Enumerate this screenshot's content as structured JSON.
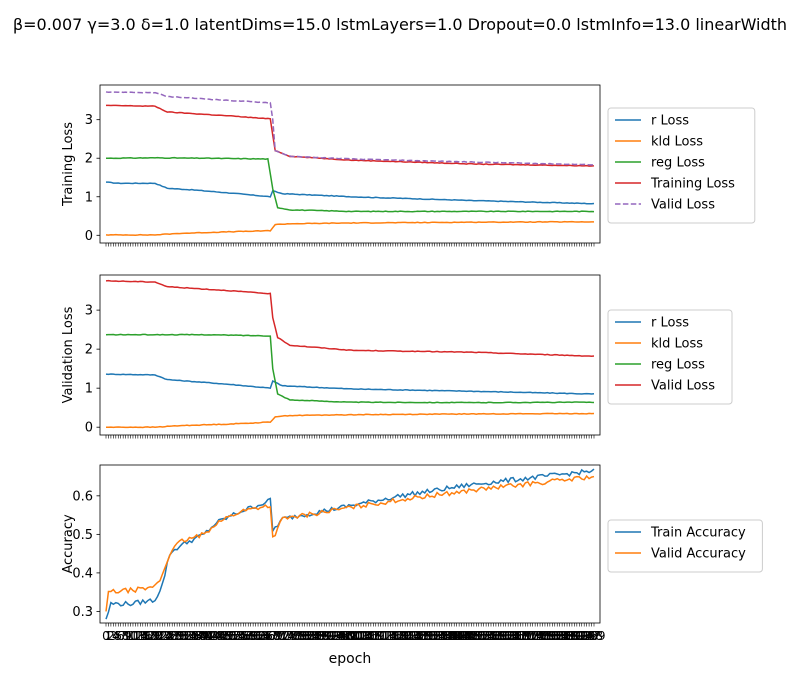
{
  "figure": {
    "suptitle": "β=0.007 γ=3.0 δ=1.0 latentDims=15.0 lstmLayers=1.0 Dropout=0.0 lstmInfo=13.0 linearWidth",
    "xlabel": "epoch"
  },
  "chart_data": [
    {
      "type": "line",
      "ylabel": "Training Loss",
      "ylim": [
        -0.2,
        3.9
      ],
      "yticks": [
        0,
        1,
        2,
        3
      ],
      "x_range": [
        0,
        199
      ],
      "legend": "right",
      "series": [
        {
          "name": "r Loss",
          "color": "#1f77b4",
          "dash": false,
          "points": [
            [
              0,
              1.38
            ],
            [
              5,
              1.35
            ],
            [
              20,
              1.35
            ],
            [
              25,
              1.22
            ],
            [
              35,
              1.18
            ],
            [
              50,
              1.1
            ],
            [
              67,
              1.0
            ],
            [
              68,
              1.15
            ],
            [
              72,
              1.08
            ],
            [
              100,
              1.0
            ],
            [
              150,
              0.9
            ],
            [
              199,
              0.82
            ]
          ]
        },
        {
          "name": "kld Loss",
          "color": "#ff7f0e",
          "dash": false,
          "points": [
            [
              0,
              0.01
            ],
            [
              20,
              0.01
            ],
            [
              30,
              0.05
            ],
            [
              50,
              0.09
            ],
            [
              67,
              0.12
            ],
            [
              69,
              0.28
            ],
            [
              75,
              0.3
            ],
            [
              100,
              0.32
            ],
            [
              150,
              0.34
            ],
            [
              199,
              0.35
            ]
          ]
        },
        {
          "name": "reg Loss",
          "color": "#2ca02c",
          "dash": false,
          "points": [
            [
              0,
              2.0
            ],
            [
              20,
              2.01
            ],
            [
              40,
              2.0
            ],
            [
              66,
              1.98
            ],
            [
              68,
              1.2
            ],
            [
              70,
              0.72
            ],
            [
              75,
              0.66
            ],
            [
              100,
              0.62
            ],
            [
              150,
              0.62
            ],
            [
              199,
              0.62
            ]
          ]
        },
        {
          "name": "Training Loss",
          "color": "#d62728",
          "dash": false,
          "points": [
            [
              0,
              3.37
            ],
            [
              20,
              3.35
            ],
            [
              25,
              3.2
            ],
            [
              50,
              3.1
            ],
            [
              67,
              3.02
            ],
            [
              68,
              2.6
            ],
            [
              69,
              2.2
            ],
            [
              75,
              2.05
            ],
            [
              100,
              1.95
            ],
            [
              150,
              1.85
            ],
            [
              199,
              1.8
            ]
          ]
        },
        {
          "name": "Valid Loss",
          "color": "#9467bd",
          "dash": true,
          "points": [
            [
              0,
              3.72
            ],
            [
              20,
              3.7
            ],
            [
              25,
              3.6
            ],
            [
              50,
              3.5
            ],
            [
              67,
              3.44
            ],
            [
              68,
              3.0
            ],
            [
              69,
              2.2
            ],
            [
              75,
              2.05
            ],
            [
              100,
              1.98
            ],
            [
              150,
              1.9
            ],
            [
              199,
              1.83
            ]
          ]
        }
      ]
    },
    {
      "type": "line",
      "ylabel": "Validation Loss",
      "ylim": [
        -0.2,
        3.9
      ],
      "yticks": [
        0,
        1,
        2,
        3
      ],
      "x_range": [
        0,
        199
      ],
      "legend": "right",
      "series": [
        {
          "name": "r Loss",
          "color": "#1f77b4",
          "dash": false,
          "points": [
            [
              0,
              1.36
            ],
            [
              20,
              1.34
            ],
            [
              25,
              1.22
            ],
            [
              50,
              1.1
            ],
            [
              67,
              1.0
            ],
            [
              68,
              1.18
            ],
            [
              72,
              1.06
            ],
            [
              100,
              0.98
            ],
            [
              150,
              0.92
            ],
            [
              199,
              0.85
            ]
          ]
        },
        {
          "name": "kld Loss",
          "color": "#ff7f0e",
          "dash": false,
          "points": [
            [
              0,
              0.0
            ],
            [
              20,
              0.0
            ],
            [
              30,
              0.04
            ],
            [
              50,
              0.08
            ],
            [
              67,
              0.13
            ],
            [
              69,
              0.27
            ],
            [
              75,
              0.3
            ],
            [
              100,
              0.32
            ],
            [
              150,
              0.34
            ],
            [
              199,
              0.35
            ]
          ]
        },
        {
          "name": "reg Loss",
          "color": "#2ca02c",
          "dash": false,
          "points": [
            [
              0,
              2.37
            ],
            [
              20,
              2.37
            ],
            [
              40,
              2.37
            ],
            [
              67,
              2.34
            ],
            [
              68,
              1.5
            ],
            [
              70,
              0.85
            ],
            [
              75,
              0.7
            ],
            [
              100,
              0.64
            ],
            [
              150,
              0.63
            ],
            [
              199,
              0.64
            ]
          ]
        },
        {
          "name": "Valid Loss",
          "color": "#d62728",
          "dash": false,
          "points": [
            [
              0,
              3.75
            ],
            [
              20,
              3.72
            ],
            [
              25,
              3.6
            ],
            [
              50,
              3.5
            ],
            [
              67,
              3.42
            ],
            [
              68,
              2.8
            ],
            [
              70,
              2.3
            ],
            [
              75,
              2.1
            ],
            [
              100,
              1.97
            ],
            [
              150,
              1.92
            ],
            [
              199,
              1.82
            ]
          ]
        }
      ]
    },
    {
      "type": "line",
      "ylabel": "Accuracy",
      "ylim": [
        0.27,
        0.68
      ],
      "yticks": [
        0.3,
        0.4,
        0.5,
        0.6
      ],
      "x_range": [
        0,
        199
      ],
      "legend": "right",
      "series": [
        {
          "name": "Train Accuracy",
          "color": "#1f77b4",
          "dash": false,
          "points": [
            [
              0,
              0.28
            ],
            [
              2,
              0.32
            ],
            [
              10,
              0.32
            ],
            [
              20,
              0.33
            ],
            [
              23,
              0.37
            ],
            [
              26,
              0.45
            ],
            [
              30,
              0.47
            ],
            [
              40,
              0.5
            ],
            [
              45,
              0.53
            ],
            [
              55,
              0.56
            ],
            [
              66,
              0.585
            ],
            [
              67,
              0.59
            ],
            [
              68,
              0.51
            ],
            [
              72,
              0.54
            ],
            [
              100,
              0.575
            ],
            [
              120,
              0.6
            ],
            [
              150,
              0.63
            ],
            [
              199,
              0.665
            ]
          ]
        },
        {
          "name": "Valid Accuracy",
          "color": "#ff7f0e",
          "dash": false,
          "points": [
            [
              0,
              0.3
            ],
            [
              1,
              0.35
            ],
            [
              10,
              0.355
            ],
            [
              18,
              0.36
            ],
            [
              22,
              0.38
            ],
            [
              26,
              0.45
            ],
            [
              30,
              0.48
            ],
            [
              40,
              0.5
            ],
            [
              45,
              0.53
            ],
            [
              55,
              0.56
            ],
            [
              66,
              0.575
            ],
            [
              67,
              0.57
            ],
            [
              68,
              0.49
            ],
            [
              72,
              0.54
            ],
            [
              100,
              0.57
            ],
            [
              120,
              0.59
            ],
            [
              150,
              0.615
            ],
            [
              199,
              0.65
            ]
          ]
        }
      ]
    }
  ]
}
